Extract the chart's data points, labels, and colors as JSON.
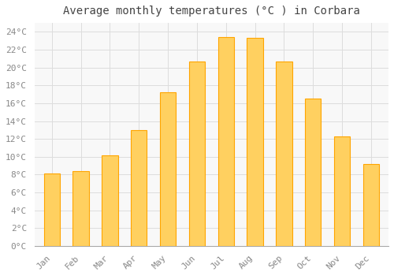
{
  "months": [
    "Jan",
    "Feb",
    "Mar",
    "Apr",
    "May",
    "Jun",
    "Jul",
    "Aug",
    "Sep",
    "Oct",
    "Nov",
    "Dec"
  ],
  "values": [
    8.1,
    8.4,
    10.2,
    13.0,
    17.2,
    20.7,
    23.4,
    23.3,
    20.7,
    16.5,
    12.3,
    9.2
  ],
  "bar_color": "#FFA500",
  "bar_color_light": "#FFD060",
  "title": "Average monthly temperatures (°C ) in Corbara",
  "title_fontsize": 10,
  "ylim": [
    0,
    25
  ],
  "background_color": "#ffffff",
  "plot_bg_color": "#f8f8f8",
  "grid_color": "#dddddd",
  "tick_color": "#888888",
  "axis_label_fontsize": 8,
  "title_color": "#444444"
}
